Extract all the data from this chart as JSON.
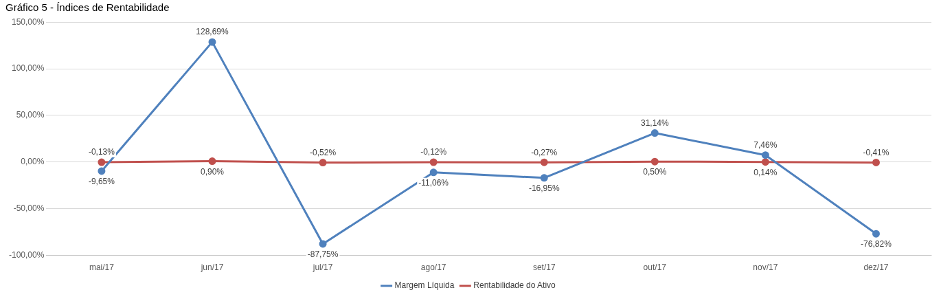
{
  "chart_data": {
    "type": "line",
    "title": "Gráfico 5 - Índices de Rentabilidade",
    "categories": [
      "mai/17",
      "jun/17",
      "jul/17",
      "ago/17",
      "set/17",
      "out/17",
      "nov/17",
      "dez/17"
    ],
    "series": [
      {
        "name": "Margem Líquida",
        "color": "#4f81bd",
        "values": [
          -9.65,
          128.69,
          -87.75,
          -11.06,
          -16.95,
          31.14,
          7.46,
          -76.82
        ],
        "value_labels": [
          "-9,65%",
          "128,69%",
          "-87,75%",
          "-11,06%",
          "-16,95%",
          "31,14%",
          "7,46%",
          "-76,82%"
        ]
      },
      {
        "name": "Rentabilidade do Ativo",
        "color": "#c0504d",
        "values": [
          -0.13,
          0.9,
          -0.52,
          -0.12,
          -0.27,
          0.5,
          0.14,
          -0.41
        ],
        "value_labels": [
          "-0,13%",
          "0,90%",
          "-0,52%",
          "-0,12%",
          "-0,27%",
          "0,50%",
          "0,14%",
          "-0,41%"
        ]
      }
    ],
    "ylim": [
      -100,
      150
    ],
    "yticks": [
      {
        "value": -100,
        "label": "-100,00%"
      },
      {
        "value": -50,
        "label": "-50,00%"
      },
      {
        "value": 0,
        "label": "0,00%"
      },
      {
        "value": 50,
        "label": "50,00%"
      },
      {
        "value": 100,
        "label": "100,00%"
      },
      {
        "value": 150,
        "label": "150,00%"
      }
    ],
    "grid": "y",
    "legend": "bottom",
    "marker": "circle",
    "line_style": "solid"
  }
}
